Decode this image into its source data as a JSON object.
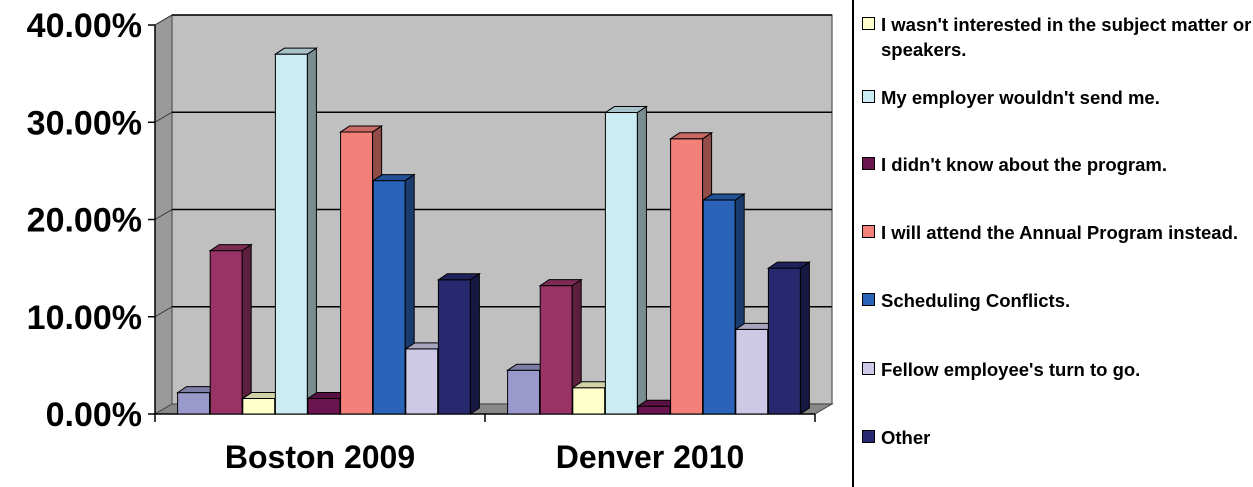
{
  "chart_data": {
    "type": "bar",
    "title": "",
    "xlabel": "",
    "ylabel": "",
    "categories": [
      "Boston 2009",
      "Denver 2010"
    ],
    "y_ticks": [
      "0.00%",
      "10.00%",
      "20.00%",
      "30.00%",
      "40.00%"
    ],
    "ylim": [
      0,
      40
    ],
    "grid": true,
    "legend_position": "right",
    "series": [
      {
        "name": "",
        "color": "#9999cc",
        "values": [
          2.2,
          4.5
        ]
      },
      {
        "name": "",
        "color": "#993366",
        "values": [
          16.8,
          13.2
        ]
      },
      {
        "name": "I wasn't interested in the subject matter or speakers.",
        "color": "#ffffcc",
        "values": [
          1.6,
          2.7
        ]
      },
      {
        "name": "My employer wouldn't send me.",
        "color": "#ccecf4",
        "values": [
          37.0,
          31.0
        ]
      },
      {
        "name": "I didn't know about the program.",
        "color": "#6b1550",
        "values": [
          1.6,
          0.8
        ]
      },
      {
        "name": "I will attend the Annual Program instead.",
        "color": "#f4807a",
        "values": [
          29.0,
          28.3
        ]
      },
      {
        "name": "Scheduling Conflicts.",
        "color": "#2a63b8",
        "values": [
          24.0,
          22.0
        ]
      },
      {
        "name": "Fellow employee's turn to go.",
        "color": "#ccc8e6",
        "values": [
          6.7,
          8.7
        ]
      },
      {
        "name": "Other",
        "color": "#27286e",
        "values": [
          13.8,
          15.0
        ]
      }
    ]
  }
}
